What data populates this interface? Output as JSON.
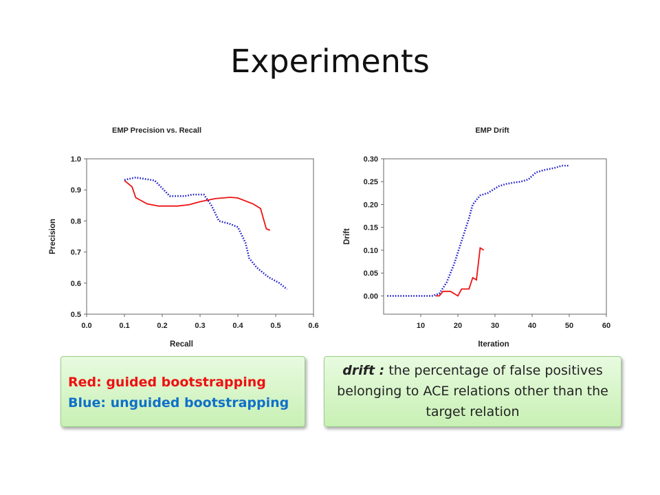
{
  "slide": {
    "title": "Experiments"
  },
  "legend_box": {
    "red_label": "Red: guided bootstrapping",
    "blue_label": "Blue: unguided bootstrapping"
  },
  "definition_box": {
    "term": "drift :",
    "text": " the percentage of false positives belonging to ACE relations other than the target relation"
  },
  "colors": {
    "guided": "#ee1111",
    "unguided": "#1a1acc",
    "box_fill": "#d9f6cc"
  },
  "chart_data": [
    {
      "type": "line",
      "title": "EMP Precision vs. Recall",
      "xlabel": "Recall",
      "ylabel": "Precision",
      "xlim": [
        0.0,
        0.6
      ],
      "ylim": [
        0.5,
        1.0
      ],
      "xticks": [
        "0.0",
        "0.1",
        "0.2",
        "0.3",
        "0.4",
        "0.5",
        "0.6"
      ],
      "yticks": [
        "0.5",
        "0.6",
        "0.7",
        "0.8",
        "0.9",
        "1.0"
      ],
      "grid": false,
      "series": [
        {
          "color": "#ee1111",
          "style": "solid",
          "points": [
            [
              0.1,
              0.93
            ],
            [
              0.12,
              0.91
            ],
            [
              0.13,
              0.875
            ],
            [
              0.16,
              0.855
            ],
            [
              0.19,
              0.848
            ],
            [
              0.24,
              0.848
            ],
            [
              0.27,
              0.852
            ],
            [
              0.3,
              0.862
            ],
            [
              0.34,
              0.872
            ],
            [
              0.38,
              0.876
            ],
            [
              0.4,
              0.874
            ],
            [
              0.44,
              0.855
            ],
            [
              0.46,
              0.84
            ],
            [
              0.475,
              0.775
            ],
            [
              0.485,
              0.77
            ]
          ]
        },
        {
          "color": "#1a1acc",
          "style": "dotted",
          "points": [
            [
              0.1,
              0.932
            ],
            [
              0.13,
              0.94
            ],
            [
              0.18,
              0.93
            ],
            [
              0.2,
              0.905
            ],
            [
              0.22,
              0.88
            ],
            [
              0.26,
              0.88
            ],
            [
              0.28,
              0.885
            ],
            [
              0.31,
              0.885
            ],
            [
              0.33,
              0.85
            ],
            [
              0.35,
              0.8
            ],
            [
              0.38,
              0.79
            ],
            [
              0.4,
              0.78
            ],
            [
              0.42,
              0.73
            ],
            [
              0.43,
              0.68
            ],
            [
              0.45,
              0.65
            ],
            [
              0.48,
              0.62
            ],
            [
              0.51,
              0.6
            ],
            [
              0.53,
              0.58
            ]
          ]
        }
      ]
    },
    {
      "type": "line",
      "title": "EMP Drift",
      "xlabel": "Iteration",
      "ylabel": "Drift",
      "xlim": [
        0,
        60
      ],
      "ylim": [
        -0.04,
        0.3
      ],
      "xticks": [
        "10",
        "20",
        "30",
        "40",
        "50",
        "60"
      ],
      "yticks": [
        "0.00",
        "0.05",
        "0.10",
        "0.15",
        "0.20",
        "0.25",
        "0.30"
      ],
      "grid": false,
      "series": [
        {
          "color": "#ee1111",
          "style": "solid",
          "points": [
            [
              14,
              0.0
            ],
            [
              15,
              0.0
            ],
            [
              16,
              0.01
            ],
            [
              18,
              0.01
            ],
            [
              19,
              0.005
            ],
            [
              20,
              0.0
            ],
            [
              21,
              0.015
            ],
            [
              23,
              0.015
            ],
            [
              24,
              0.04
            ],
            [
              25,
              0.035
            ],
            [
              26,
              0.105
            ],
            [
              27,
              0.1
            ]
          ]
        },
        {
          "color": "#1a1acc",
          "style": "dotted",
          "points": [
            [
              1,
              0.0
            ],
            [
              13,
              0.0
            ],
            [
              15,
              0.005
            ],
            [
              17,
              0.03
            ],
            [
              19,
              0.07
            ],
            [
              21,
              0.12
            ],
            [
              23,
              0.17
            ],
            [
              24,
              0.2
            ],
            [
              26,
              0.22
            ],
            [
              28,
              0.225
            ],
            [
              31,
              0.24
            ],
            [
              33,
              0.245
            ],
            [
              35,
              0.248
            ],
            [
              37,
              0.25
            ],
            [
              39,
              0.255
            ],
            [
              41,
              0.27
            ],
            [
              43,
              0.275
            ],
            [
              46,
              0.28
            ],
            [
              48,
              0.285
            ],
            [
              50,
              0.285
            ]
          ]
        }
      ]
    }
  ]
}
